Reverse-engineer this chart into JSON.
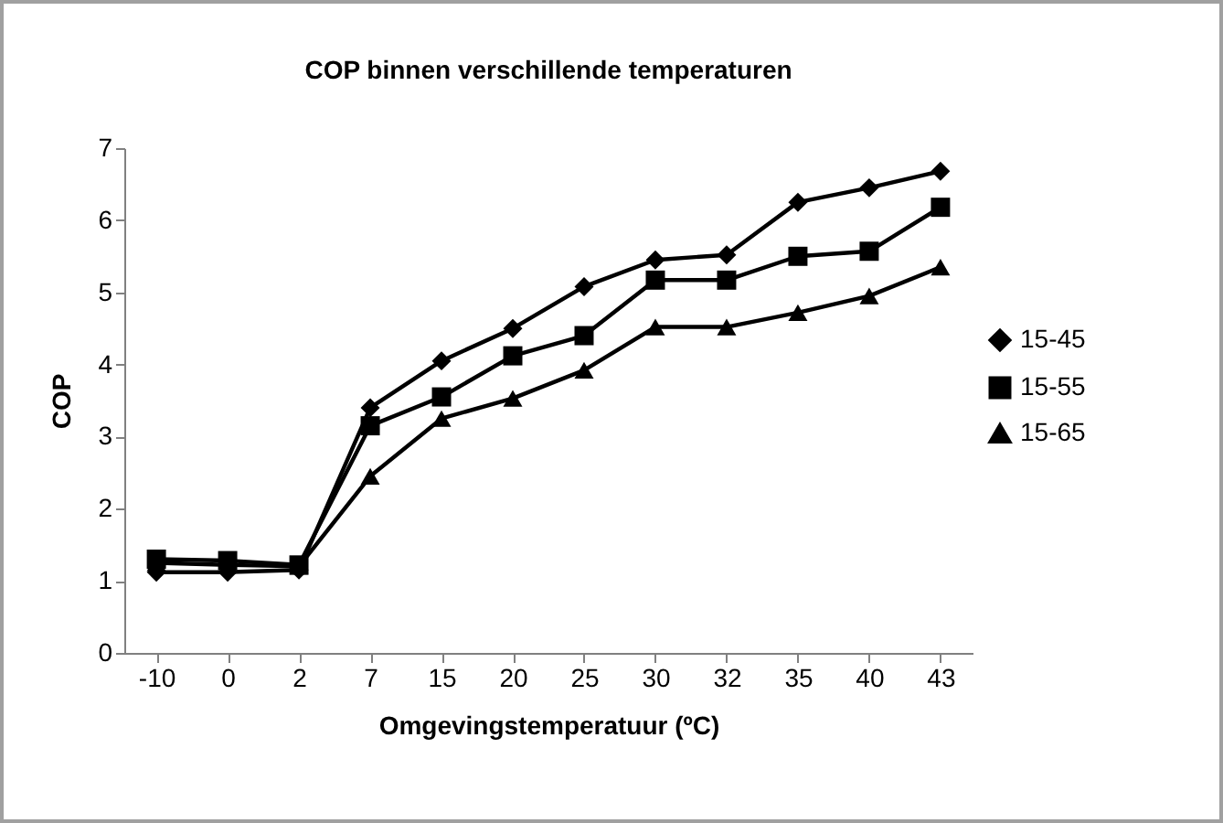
{
  "chart_data": {
    "type": "line",
    "title": "COP binnen verschillende temperaturen",
    "xlabel": "Omgevingstemperatuur (ºC)",
    "ylabel": "COP",
    "categories": [
      "-10",
      "0",
      "2",
      "7",
      "15",
      "20",
      "25",
      "30",
      "32",
      "35",
      "40",
      "43"
    ],
    "series": [
      {
        "name": "15-45",
        "color": "#000000",
        "marker": "diamond",
        "values": [
          1.12,
          1.12,
          1.15,
          3.4,
          4.05,
          4.5,
          5.08,
          5.45,
          5.52,
          6.25,
          6.45,
          6.68
        ]
      },
      {
        "name": "15-55",
        "color": "#000000",
        "marker": "square",
        "values": [
          1.3,
          1.28,
          1.22,
          3.15,
          3.55,
          4.12,
          4.4,
          5.17,
          5.17,
          5.5,
          5.57,
          6.18
        ]
      },
      {
        "name": "15-65",
        "color": "#000000",
        "marker": "triangle",
        "values": [
          1.25,
          1.22,
          1.2,
          2.45,
          3.25,
          3.53,
          3.92,
          4.52,
          4.52,
          4.72,
          4.95,
          5.35
        ]
      }
    ],
    "ylim": [
      0,
      7
    ],
    "yticks": [
      0,
      1,
      2,
      3,
      4,
      5,
      6,
      7
    ],
    "grid": false,
    "legend": "right",
    "line_style": "solid"
  }
}
